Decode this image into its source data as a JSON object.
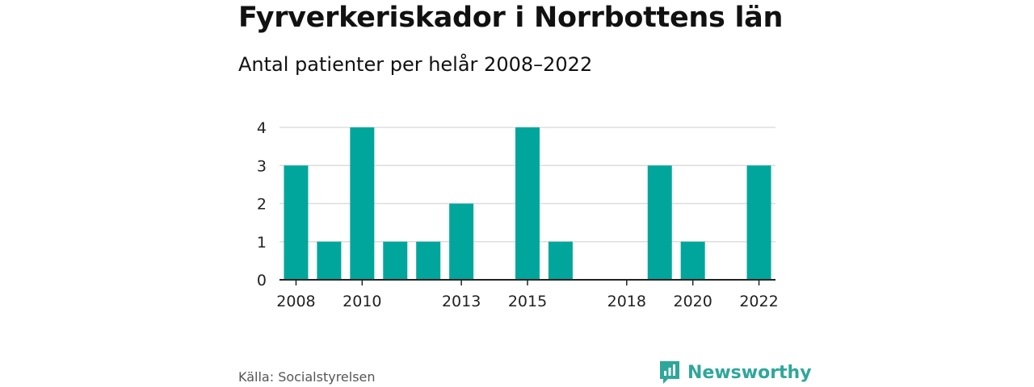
{
  "title": "Fyrverkeriskador i Norrbottens län",
  "subtitle": "Antal patienter per helår 2008–2022",
  "source": "Källa: Socialstyrelsen",
  "brand": {
    "name": "Newsworthy",
    "icon": "newsworthy-logo-icon",
    "color": "#2ea79a"
  },
  "chart_data": {
    "type": "bar",
    "categories": [
      "2008",
      "2009",
      "2010",
      "2011",
      "2012",
      "2013",
      "2014",
      "2015",
      "2016",
      "2017",
      "2018",
      "2019",
      "2020",
      "2021",
      "2022"
    ],
    "values": [
      3,
      1,
      4,
      1,
      1,
      2,
      0,
      4,
      1,
      0,
      0,
      3,
      1,
      0,
      3
    ],
    "x_tick_labels": [
      "2008",
      "2010",
      "2013",
      "2015",
      "2018",
      "2020",
      "2022"
    ],
    "y_ticks": [
      0,
      1,
      2,
      3,
      4
    ],
    "ylim": [
      0,
      4
    ],
    "xlabel": "",
    "ylabel": "",
    "grid": true,
    "bar_color": "#00a69c",
    "grid_color": "#dddddd",
    "axis_color": "#222222"
  }
}
